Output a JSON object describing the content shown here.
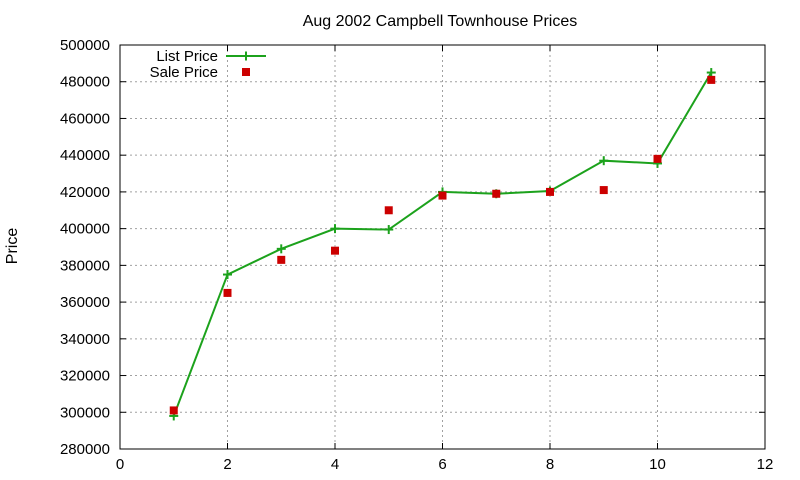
{
  "chart_data": {
    "type": "line",
    "title": "Aug 2002 Campbell Townhouse Prices",
    "xlabel": "",
    "ylabel": "Price",
    "xlim": [
      0,
      12
    ],
    "ylim": [
      280000,
      500000
    ],
    "xticks": [
      0,
      2,
      4,
      6,
      8,
      10,
      12
    ],
    "yticks": [
      280000,
      300000,
      320000,
      340000,
      360000,
      380000,
      400000,
      420000,
      440000,
      460000,
      480000,
      500000
    ],
    "grid": true,
    "legend_position": "top-left",
    "series": [
      {
        "name": "List Price",
        "style": "line with plus markers",
        "color": "#1ca21c",
        "x": [
          1,
          2,
          3,
          4,
          5,
          6,
          7,
          8,
          9,
          10,
          11
        ],
        "y": [
          298000,
          375000,
          389000,
          400000,
          399500,
          420000,
          419000,
          420500,
          437000,
          435500,
          485000
        ]
      },
      {
        "name": "Sale Price",
        "style": "square markers",
        "color": "#cc0000",
        "x": [
          1,
          2,
          3,
          4,
          5,
          6,
          7,
          8,
          9,
          10,
          11
        ],
        "y": [
          301000,
          365000,
          383000,
          388000,
          410000,
          418000,
          419000,
          420000,
          421000,
          438000,
          481000
        ]
      }
    ]
  }
}
